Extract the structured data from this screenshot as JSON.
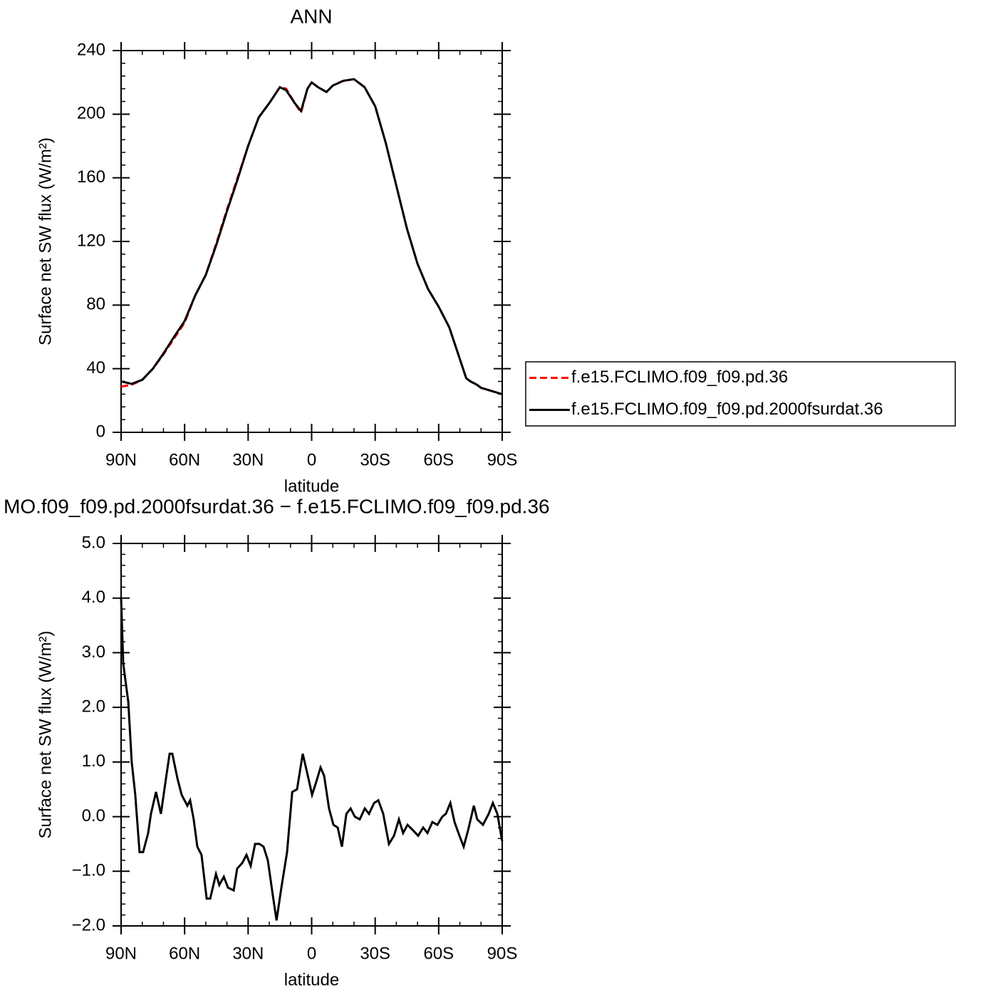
{
  "chart_data": [
    {
      "type": "line",
      "title": "ANN",
      "xlabel": "latitude",
      "ylabel": "Surface net SW flux (W/m²)",
      "x": [
        90,
        85,
        80,
        75,
        70,
        65,
        60,
        55,
        50,
        45,
        40,
        35,
        30,
        25,
        20,
        15,
        12,
        8,
        5,
        2,
        0,
        -3,
        -7,
        -10,
        -15,
        -20,
        -25,
        -30,
        -35,
        -40,
        -45,
        -50,
        -55,
        -60,
        -65,
        -70,
        -73,
        -75,
        -78,
        -80,
        -85,
        -90
      ],
      "series": [
        {
          "name": "f.e15.FCLIMO.f09_f09.pd.36",
          "color": "#ff0000",
          "linestyle": "dashed",
          "values": [
            28.7,
            30,
            33,
            40,
            49,
            59,
            69,
            86,
            99,
            119,
            140,
            160,
            180,
            198,
            207,
            217,
            216,
            207,
            201,
            216,
            220,
            217,
            214,
            218,
            221,
            222,
            217,
            205,
            182,
            155,
            128,
            106,
            90,
            79,
            66,
            46,
            34,
            32,
            30,
            28,
            26,
            24
          ]
        },
        {
          "name": "f.e15.FCLIMO.f09_f09.pd.2000fsurdat.36",
          "color": "#000000",
          "linestyle": "solid",
          "values": [
            32,
            30.5,
            33,
            40,
            49.5,
            60,
            70,
            86,
            99,
            118,
            139,
            159,
            180,
            198,
            207,
            217,
            215,
            207,
            202,
            216,
            220,
            217,
            214,
            218,
            221,
            222,
            217,
            205,
            182,
            155,
            128,
            106,
            90,
            79,
            66,
            46,
            34,
            32,
            30,
            28,
            26,
            24
          ]
        }
      ],
      "xlim": [
        90,
        -90
      ],
      "xticks": [
        {
          "value": 90,
          "label": "90N"
        },
        {
          "value": 60,
          "label": "60N"
        },
        {
          "value": 30,
          "label": "30N"
        },
        0,
        {
          "value": -30,
          "label": "30S"
        },
        {
          "value": -60,
          "label": "60S"
        },
        {
          "value": -90,
          "label": "90S"
        }
      ],
      "ylim": [
        0,
        240
      ],
      "yticks": [
        0,
        40,
        80,
        120,
        160,
        200,
        240
      ],
      "legend": "right"
    },
    {
      "type": "line",
      "title": "MO.f09_f09.pd.2000fsurdat.36 − f.e15.FCLIMO.f09_f09.pd.36",
      "xlabel": "latitude",
      "ylabel": "Surface net SW flux (W/m²)",
      "x": [
        90,
        89,
        86.6,
        85,
        83.3,
        81.3,
        79.6,
        77.2,
        75.9,
        73.5,
        71.2,
        68.8,
        67.1,
        65.8,
        63.4,
        61.4,
        58.7,
        57.4,
        55.7,
        54,
        52,
        49.6,
        47.9,
        45.2,
        43.6,
        41.5,
        39.5,
        36.8,
        35.2,
        32.8,
        30.8,
        28.8,
        26.7,
        24.7,
        22.7,
        20.7,
        18.3,
        16.6,
        14.3,
        11.6,
        9.2,
        6.9,
        4.2,
        1.8,
        -0.2,
        -1.9,
        -4.2,
        -5.9,
        -8.2,
        -10.3,
        -12.3,
        -14.3,
        -16.4,
        -18.4,
        -20.4,
        -22.7,
        -25.1,
        -27.1,
        -29.5,
        -31.5,
        -33.8,
        -36.5,
        -38.9,
        -41.2,
        -43.2,
        -45.3,
        -47.9,
        -50.3,
        -52.7,
        -54.7,
        -57,
        -59.4,
        -61.7,
        -63.4,
        -65.5,
        -67.5,
        -69.8,
        -71.8,
        -73.9,
        -76.6,
        -78.2,
        -80.9,
        -83.6,
        -85.6,
        -87.7,
        -90
      ],
      "series": [
        {
          "color": "#000000",
          "linestyle": "solid",
          "values": [
            4.0,
            2.8,
            2.1,
            1.0,
            0.4,
            -0.65,
            -0.65,
            -0.3,
            0.05,
            0.45,
            0.05,
            0.7,
            1.15,
            1.15,
            0.7,
            0.4,
            0.2,
            0.3,
            -0.05,
            -0.55,
            -0.7,
            -1.5,
            -1.5,
            -1.05,
            -1.25,
            -1.1,
            -1.3,
            -1.35,
            -0.95,
            -0.85,
            -0.7,
            -0.9,
            -0.5,
            -0.5,
            -0.55,
            -0.8,
            -1.45,
            -1.9,
            -1.3,
            -0.65,
            0.45,
            0.5,
            1.15,
            0.75,
            0.4,
            0.6,
            0.9,
            0.75,
            0.15,
            -0.15,
            -0.2,
            -0.55,
            0.05,
            0.15,
            0.0,
            -0.05,
            0.15,
            0.05,
            0.25,
            0.3,
            0.05,
            -0.5,
            -0.35,
            -0.05,
            -0.3,
            -0.15,
            -0.25,
            -0.35,
            -0.2,
            -0.3,
            -0.1,
            -0.15,
            0.0,
            0.05,
            0.25,
            -0.1,
            -0.35,
            -0.55,
            -0.25,
            0.2,
            -0.05,
            -0.15,
            0.05,
            0.25,
            0.05,
            -0.45
          ]
        }
      ],
      "xlim": [
        90,
        -90
      ],
      "xticks": [
        {
          "value": 90,
          "label": "90N"
        },
        {
          "value": 60,
          "label": "60N"
        },
        {
          "value": 30,
          "label": "30N"
        },
        0,
        {
          "value": -30,
          "label": "30S"
        },
        {
          "value": -60,
          "label": "60S"
        },
        {
          "value": -90,
          "label": "90S"
        }
      ],
      "ylim": [
        -2,
        5
      ],
      "yticks": [
        {
          "value": -2,
          "label": "−2.0"
        },
        {
          "value": -1,
          "label": "−1.0"
        },
        {
          "value": 0,
          "label": "0.0"
        },
        {
          "value": 1,
          "label": "1.0"
        },
        {
          "value": 2,
          "label": "2.0"
        },
        {
          "value": 3,
          "label": "3.0"
        },
        {
          "value": 4,
          "label": "4.0"
        },
        {
          "value": 5,
          "label": "5.0"
        }
      ]
    }
  ]
}
